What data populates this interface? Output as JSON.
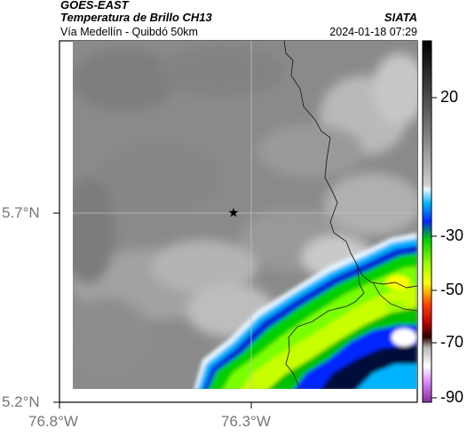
{
  "header": {
    "satellite": "GOES-EAST",
    "product": "Temperatura de Brillo CH13",
    "region": "Vía Medellín - Quibdó 50km",
    "source": "SIATA",
    "datetime": "2024-01-18 07:29"
  },
  "map": {
    "lat_labels": [
      "5.7°N",
      "5.2°N"
    ],
    "lon_labels": [
      "76.8°W",
      "76.3°W"
    ],
    "marker_icon": "star-icon",
    "background_color": "#8c8c8c"
  },
  "colorbar": {
    "ticks": [
      "20",
      "-30",
      "-50",
      "-70",
      "-90"
    ],
    "colors": [
      "#000000",
      "#6f6f6f",
      "#d4d4d4",
      "#00b4ff",
      "#00ff00",
      "#ffff00",
      "#ff0000",
      "#7a0000",
      "#ffffff",
      "#c23cff"
    ]
  }
}
